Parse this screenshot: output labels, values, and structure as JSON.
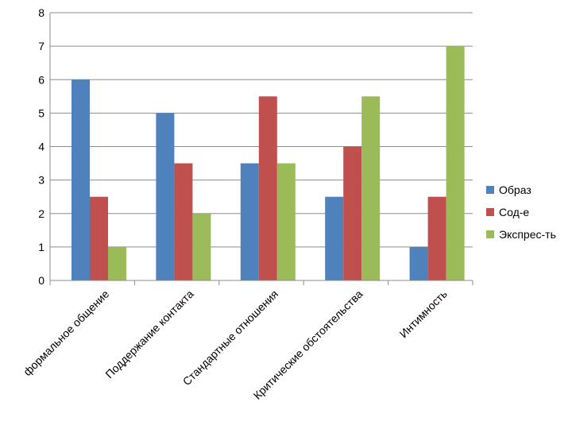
{
  "chart_data": {
    "type": "bar",
    "categories": [
      "формальное общение",
      "Поддержание контакта",
      "Стандартные отношения",
      "Критические обстоятельства",
      "Интимность"
    ],
    "series": [
      {
        "name": "Образ",
        "color": "#4f81bd",
        "values": [
          6,
          5,
          3.5,
          2.5,
          1
        ]
      },
      {
        "name": "Сод-е",
        "color": "#c0504d",
        "values": [
          2.5,
          3.5,
          5.5,
          4,
          2.5
        ]
      },
      {
        "name": "Экспрес-ть",
        "color": "#9bbb59",
        "values": [
          1,
          2,
          3.5,
          5.5,
          7
        ]
      }
    ],
    "ylim": [
      0,
      8
    ],
    "yticks": [
      "0",
      "1",
      "2",
      "3",
      "4",
      "5",
      "6",
      "7",
      "8"
    ],
    "grid": true,
    "legend": "right"
  }
}
